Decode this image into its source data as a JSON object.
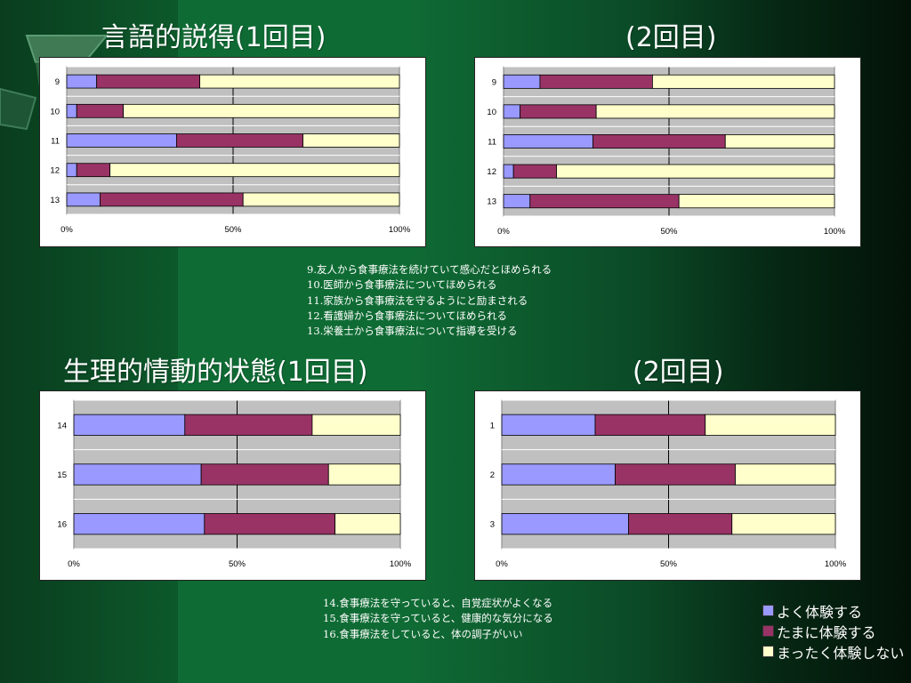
{
  "colors": {
    "series1": "#9999ff",
    "series2": "#993366",
    "series3": "#ffffcc",
    "plot_bg": "#c0c0c0"
  },
  "titles": {
    "t1": "言語的説得(1回目)",
    "t2": "(2回目)",
    "t3": "生理的情動的状態(1回目)",
    "t4": "(2回目)"
  },
  "notes_top": [
    "9.友人から食事療法を続けていて感心だとほめられる",
    "10.医師から食事療法についてほめられる",
    "11.家族から食事療法を守るようにと励まされる",
    "12.看護婦から食事療法についてほめられる",
    "13.栄養士から食事療法について指導を受ける"
  ],
  "notes_bottom": [
    "14.食事療法を守っていると、自覚症状がよくなる",
    "15.食事療法を守っていると、健康的な気分になる",
    "16.食事療法をしていると、体の調子がいい"
  ],
  "legend": [
    {
      "label": "よく体験する",
      "color": "#9999ff"
    },
    {
      "label": "たまに体験する",
      "color": "#993366"
    },
    {
      "label": "まったく体験しない",
      "color": "#ffffcc"
    }
  ],
  "chart_data": [
    {
      "type": "bar",
      "orientation": "horizontal",
      "stacked": "percent",
      "title": "言語的説得(1回目)",
      "categories": [
        "9",
        "10",
        "11",
        "12",
        "13"
      ],
      "series": [
        {
          "name": "よく体験する",
          "values": [
            9,
            3,
            33,
            3,
            10
          ]
        },
        {
          "name": "たまに体験する",
          "values": [
            31,
            14,
            38,
            10,
            43
          ]
        },
        {
          "name": "まったく体験しない",
          "values": [
            60,
            83,
            29,
            87,
            47
          ]
        }
      ],
      "xticks": [
        "0%",
        "50%",
        "100%"
      ],
      "xlim": [
        0,
        100
      ],
      "grid": true
    },
    {
      "type": "bar",
      "orientation": "horizontal",
      "stacked": "percent",
      "title": "(2回目)",
      "categories": [
        "9",
        "10",
        "11",
        "12",
        "13"
      ],
      "series": [
        {
          "name": "よく体験する",
          "values": [
            11,
            5,
            27,
            3,
            8
          ]
        },
        {
          "name": "たまに体験する",
          "values": [
            34,
            23,
            40,
            13,
            45
          ]
        },
        {
          "name": "まったく体験しない",
          "values": [
            55,
            72,
            33,
            84,
            47
          ]
        }
      ],
      "xticks": [
        "0%",
        "50%",
        "100%"
      ],
      "xlim": [
        0,
        100
      ],
      "grid": true
    },
    {
      "type": "bar",
      "orientation": "horizontal",
      "stacked": "percent",
      "title": "生理的情動的状態(1回目)",
      "categories": [
        "14",
        "15",
        "16"
      ],
      "series": [
        {
          "name": "よく体験する",
          "values": [
            34,
            39,
            40
          ]
        },
        {
          "name": "たまに体験する",
          "values": [
            39,
            39,
            40
          ]
        },
        {
          "name": "まったく体験しない",
          "values": [
            27,
            22,
            20
          ]
        }
      ],
      "xticks": [
        "0%",
        "50%",
        "100%"
      ],
      "xlim": [
        0,
        100
      ],
      "grid": true
    },
    {
      "type": "bar",
      "orientation": "horizontal",
      "stacked": "percent",
      "title": "(2回目)",
      "categories": [
        "1",
        "2",
        "3"
      ],
      "series": [
        {
          "name": "よく体験する",
          "values": [
            28,
            34,
            38
          ]
        },
        {
          "name": "たまに体験する",
          "values": [
            33,
            36,
            31
          ]
        },
        {
          "name": "まったく体験しない",
          "values": [
            39,
            30,
            31
          ]
        }
      ],
      "xticks": [
        "0%",
        "50%",
        "100%"
      ],
      "xlim": [
        0,
        100
      ],
      "grid": true
    }
  ]
}
